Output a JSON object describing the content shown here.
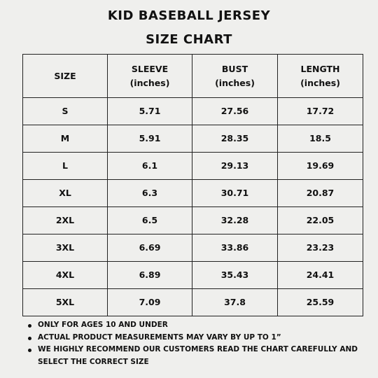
{
  "title": {
    "line1": "KID BASEBALL JERSEY",
    "line2": "SIZE CHART"
  },
  "table": {
    "headers": [
      {
        "line1": "SIZE",
        "line2": ""
      },
      {
        "line1": "SLEEVE",
        "line2": "(inches)"
      },
      {
        "line1": "BUST",
        "line2": "(inches)"
      },
      {
        "line1": "LENGTH",
        "line2": "(inches)"
      }
    ],
    "rows": [
      [
        "S",
        "5.71",
        "27.56",
        "17.72"
      ],
      [
        "M",
        "5.91",
        "28.35",
        "18.5"
      ],
      [
        "L",
        "6.1",
        "29.13",
        "19.69"
      ],
      [
        "XL",
        "6.3",
        "30.71",
        "20.87"
      ],
      [
        "2XL",
        "6.5",
        "32.28",
        "22.05"
      ],
      [
        "3XL",
        "6.69",
        "33.86",
        "23.23"
      ],
      [
        "4XL",
        "6.89",
        "35.43",
        "24.41"
      ],
      [
        "5XL",
        "7.09",
        "37.8",
        "25.59"
      ]
    ]
  },
  "notes": [
    "ONLY FOR AGES 10 AND UNDER",
    "ACTUAL PRODUCT MEASUREMENTS MAY VARY BY UP TO 1”",
    "WE HIGHLY RECOMMEND OUR CUSTOMERS READ THE CHART CAREFULLY AND SELECT THE CORRECT SIZE"
  ],
  "colors": {
    "background": "#efefed",
    "text": "#111111",
    "border": "#222222"
  }
}
